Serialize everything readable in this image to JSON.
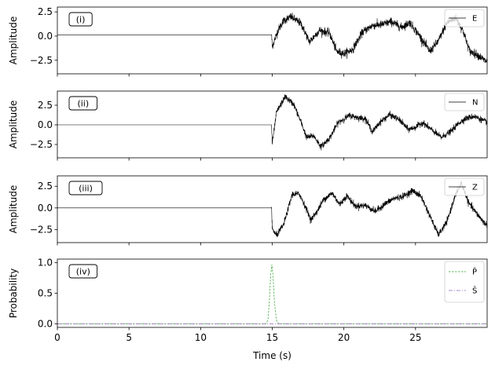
{
  "chart_data": {
    "type": "line",
    "xlabel": "Time (s)",
    "xlim": [
      0,
      30
    ],
    "xticks": [
      0,
      5,
      10,
      15,
      20,
      25
    ],
    "panels": [
      {
        "tag": "(i)",
        "ylabel": "Amplitude",
        "ylim": [
          -3.9,
          3.0
        ],
        "yticks": [
          2.5,
          0.0,
          -2.5
        ],
        "ytick_labels": [
          "2.5",
          "0.0",
          "−2.5"
        ],
        "legend": [
          {
            "name": "E",
            "style": "solid",
            "color": "#000000"
          }
        ],
        "series": [
          {
            "name": "E",
            "color": "#000000",
            "noise": 0.38,
            "onset": 14.95,
            "pre_value": 0.1,
            "x": [
              14.95,
              15.0,
              15.4,
              15.8,
              16.3,
              17.0,
              17.6,
              18.3,
              19.0,
              19.5,
              20.0,
              20.6,
              21.3,
              22.0,
              22.7,
              23.3,
              24.0,
              24.6,
              25.3,
              26.0,
              26.6,
              27.2,
              27.8,
              28.3,
              28.8,
              29.3,
              29.9
            ],
            "y": [
              0.2,
              -1.1,
              0.6,
              1.6,
              2.0,
              1.3,
              -0.6,
              0.6,
              0.3,
              -1.6,
              -1.8,
              -1.4,
              0.4,
              1.1,
              1.2,
              1.5,
              0.9,
              1.4,
              0.0,
              -1.6,
              -0.5,
              1.4,
              1.9,
              0.6,
              -1.6,
              -1.9,
              -2.6
            ]
          }
        ]
      },
      {
        "tag": "(ii)",
        "ylabel": "Amplitude",
        "ylim": [
          -4.2,
          4.3
        ],
        "yticks": [
          2.5,
          0.0,
          -2.5
        ],
        "ytick_labels": [
          "2.5",
          "0.0",
          "−2.5"
        ],
        "legend": [
          {
            "name": "N",
            "style": "solid",
            "color": "#000000"
          }
        ],
        "series": [
          {
            "name": "N",
            "color": "#000000",
            "noise": 0.35,
            "onset": 14.95,
            "pre_value": 0.0,
            "x": [
              14.95,
              15.0,
              15.3,
              15.9,
              16.5,
              17.0,
              17.4,
              17.9,
              18.4,
              19.0,
              19.6,
              20.4,
              21.0,
              21.5,
              22.0,
              22.5,
              23.2,
              23.9,
              24.5,
              25.0,
              25.5,
              26.1,
              26.8,
              27.5,
              28.0,
              28.5,
              29.1,
              29.9
            ],
            "y": [
              0.0,
              -2.4,
              1.6,
              3.6,
              2.6,
              0.4,
              -1.6,
              -1.4,
              -2.8,
              -1.7,
              0.3,
              1.2,
              0.9,
              0.8,
              -0.9,
              0.3,
              1.3,
              0.6,
              -0.6,
              -0.3,
              0.3,
              -0.6,
              -1.6,
              -0.8,
              0.2,
              0.8,
              1.1,
              0.4
            ]
          }
        ]
      },
      {
        "tag": "(iii)",
        "ylabel": "Amplitude",
        "ylim": [
          -4.0,
          3.7
        ],
        "yticks": [
          2.5,
          0.0,
          -2.5
        ],
        "ytick_labels": [
          "2.5",
          "0.0",
          "−2.5"
        ],
        "legend": [
          {
            "name": "Z",
            "style": "solid",
            "color": "#000000"
          }
        ],
        "series": [
          {
            "name": "Z",
            "color": "#000000",
            "noise": 0.33,
            "onset": 14.95,
            "pre_value": 0.0,
            "x": [
              14.95,
              15.0,
              15.3,
              15.8,
              16.4,
              16.9,
              17.3,
              17.7,
              18.2,
              18.6,
              19.2,
              19.7,
              20.2,
              20.8,
              21.5,
              22.2,
              22.9,
              23.5,
              24.1,
              24.8,
              25.4,
              26.0,
              26.6,
              27.2,
              27.7,
              28.2,
              28.7,
              29.3,
              29.9
            ],
            "y": [
              0.0,
              -2.4,
              -3.2,
              -1.9,
              1.6,
              1.6,
              0.2,
              -1.4,
              -0.2,
              1.0,
              1.7,
              0.4,
              1.4,
              0.2,
              0.3,
              -0.4,
              0.5,
              1.1,
              1.3,
              2.0,
              1.3,
              -0.9,
              -3.1,
              -1.6,
              1.1,
              2.9,
              0.6,
              -0.7,
              -1.9
            ]
          }
        ]
      },
      {
        "tag": "(iv)",
        "ylabel": "Probability",
        "ylim": [
          -0.06,
          1.06
        ],
        "yticks": [
          1.0,
          0.5,
          0.0
        ],
        "ytick_labels": [
          "1.0",
          "0.5",
          "0.0"
        ],
        "legend": [
          {
            "name": "P̂",
            "style": "dashed",
            "color": "#2ca02c"
          },
          {
            "name": "Ŝ",
            "style": "dashdot",
            "color": "#9467bd"
          }
        ],
        "series": [
          {
            "name": "P̂",
            "color": "#2ca02c",
            "dash": "2.5,1.5",
            "x": [
              0,
              14.55,
              14.7,
              14.8,
              14.9,
              14.97,
              15.05,
              15.15,
              15.3,
              15.45,
              30
            ],
            "y": [
              0.0,
              0.0,
              0.06,
              0.38,
              0.82,
              0.97,
              0.8,
              0.36,
              0.05,
              0.0,
              0.0
            ]
          },
          {
            "name": "Ŝ",
            "color": "#9467bd",
            "dash": "5,2,1,2",
            "x": [
              0,
              30
            ],
            "y": [
              0.0,
              0.0
            ]
          }
        ]
      }
    ]
  }
}
